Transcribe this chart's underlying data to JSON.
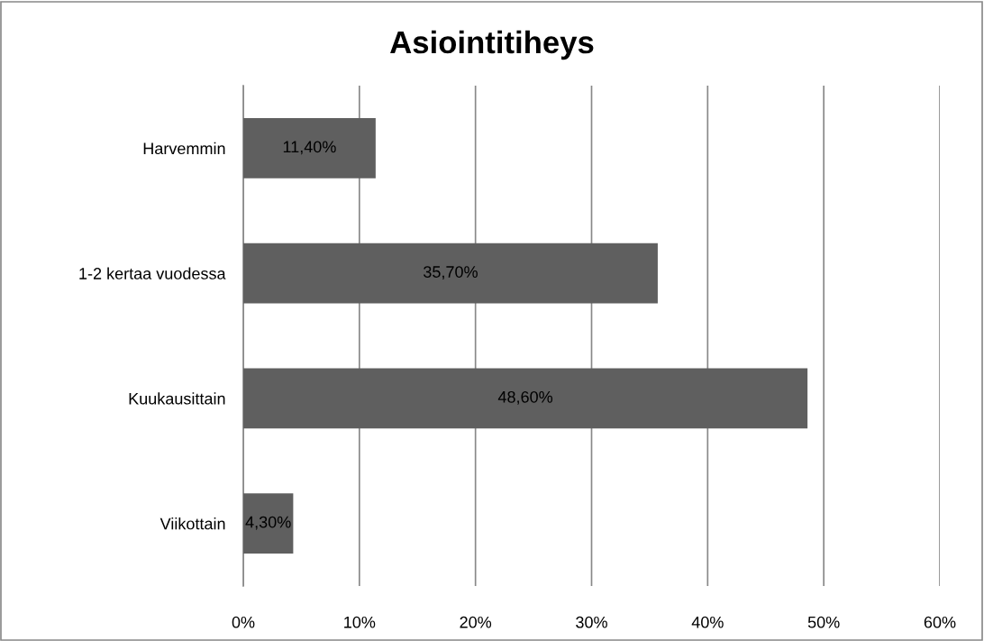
{
  "chart_data": {
    "type": "bar",
    "orientation": "horizontal",
    "title": "Asiointitiheys",
    "categories": [
      "Harvemmin",
      "1-2 kertaa vuodessa",
      "Kuukausittain",
      "Viikottain"
    ],
    "values": [
      11.4,
      35.7,
      48.6,
      4.3
    ],
    "value_labels": [
      "11,40%",
      "35,70%",
      "48,60%",
      "4,30%"
    ],
    "color": "#5f5f5f",
    "xlim": [
      0,
      60
    ],
    "xticks": [
      {
        "value": 0,
        "label": "0%"
      },
      {
        "value": 10,
        "label": "10%"
      },
      {
        "value": 20,
        "label": "20%"
      },
      {
        "value": 30,
        "label": "30%"
      },
      {
        "value": 40,
        "label": "40%"
      },
      {
        "value": 50,
        "label": "50%"
      },
      {
        "value": 60,
        "label": "60%"
      }
    ],
    "grid": "x"
  }
}
